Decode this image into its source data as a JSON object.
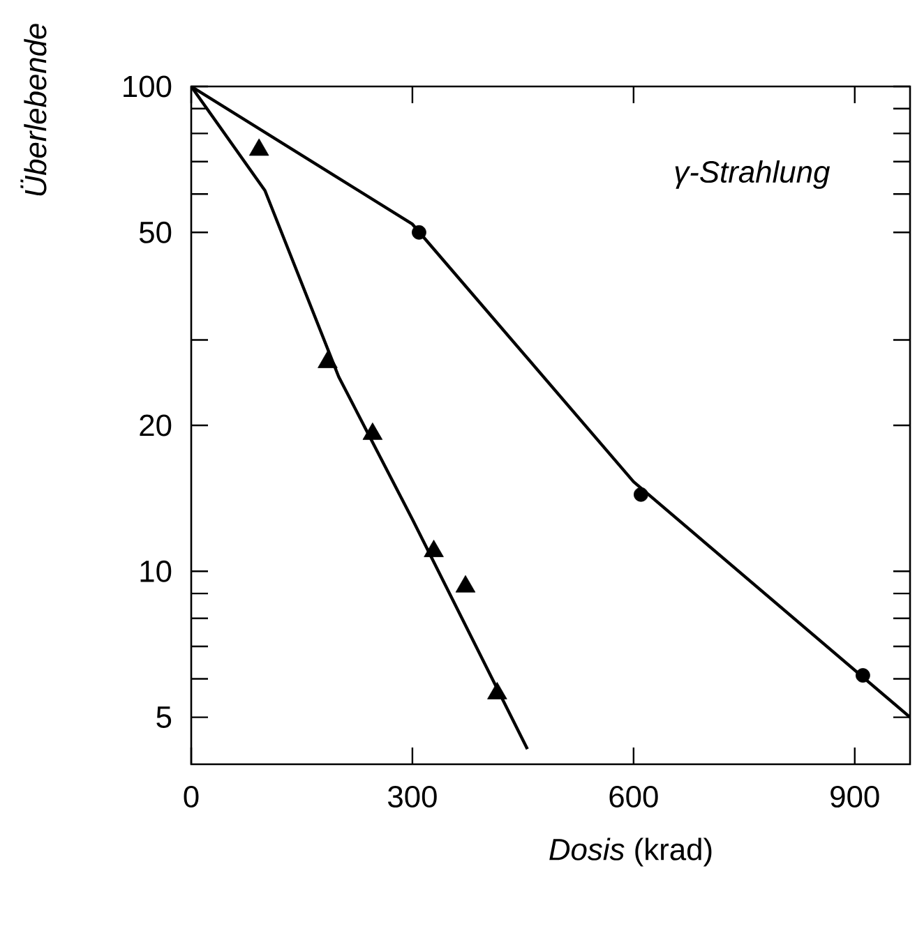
{
  "chart_data": {
    "type": "scatter",
    "xlabel": "*Dosis* (krad)",
    "ylabel": "Überlebende",
    "annotations": [
      "γ-Strahlung"
    ],
    "log": "y",
    "grid": false,
    "xlim": [
      0,
      975
    ],
    "ylim": [
      4,
      100
    ],
    "xticks": [
      0,
      300,
      600,
      900
    ],
    "yticks": [
      5,
      {
        "value": 6,
        "label": null
      },
      {
        "value": 7,
        "label": null
      },
      {
        "value": 8,
        "label": null
      },
      {
        "value": 9,
        "label": null
      },
      10,
      20,
      {
        "value": 30,
        "label": null
      },
      50,
      {
        "value": 60,
        "label": null
      },
      {
        "value": 70,
        "label": null
      },
      {
        "value": 80,
        "label": null
      },
      {
        "value": 90,
        "label": null
      },
      100
    ],
    "series": [
      {
        "marker": "triangle",
        "color": "#000000",
        "x": [
          92,
          185,
          246,
          329,
          372,
          415
        ],
        "values": [
          74,
          27,
          19.2,
          11,
          9.3,
          5.6
        ]
      },
      {
        "marker": "circle",
        "color": "#000000",
        "x": [
          309,
          610,
          911
        ],
        "values": [
          50,
          14.4,
          6.1
        ]
      },
      {
        "type": "line",
        "marker": "none",
        "line_style": "solid",
        "color": "#000000",
        "x": [
          0,
          100,
          200,
          300,
          456
        ],
        "values": [
          100,
          61,
          25.2,
          12.8,
          4.3
        ]
      },
      {
        "type": "line",
        "marker": "none",
        "line_style": "solid",
        "color": "#000000",
        "x": [
          0,
          300,
          600,
          975
        ],
        "values": [
          100,
          52,
          15.3,
          5
        ]
      }
    ]
  }
}
